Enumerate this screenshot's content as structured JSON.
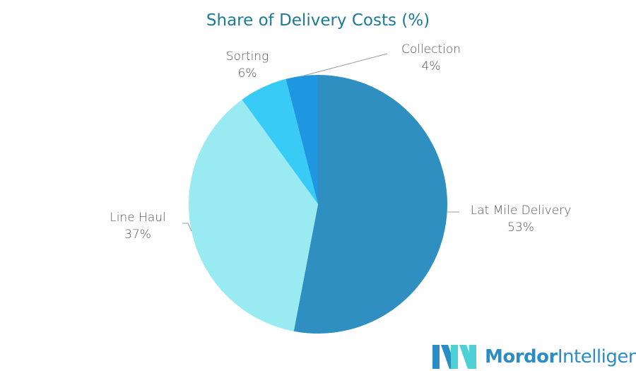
{
  "chart_data": {
    "type": "pie",
    "title": "Share of Delivery Costs (%)",
    "start": "top",
    "direction": "clockwise",
    "slices": [
      {
        "label": "Lat Mile Delivery",
        "value": 53,
        "value_label": "53%",
        "color": "#2e8fc0"
      },
      {
        "label": "Line Haul",
        "value": 37,
        "value_label": "37%",
        "color": "#9aeaf2"
      },
      {
        "label": "Sorting",
        "value": 6,
        "value_label": "6%",
        "color": "#38cbf5"
      },
      {
        "label": "Collection",
        "value": 4,
        "value_label": "4%",
        "color": "#1f96e0"
      }
    ]
  },
  "logo": {
    "bold": "Mordor",
    "light": "Intelligence"
  }
}
